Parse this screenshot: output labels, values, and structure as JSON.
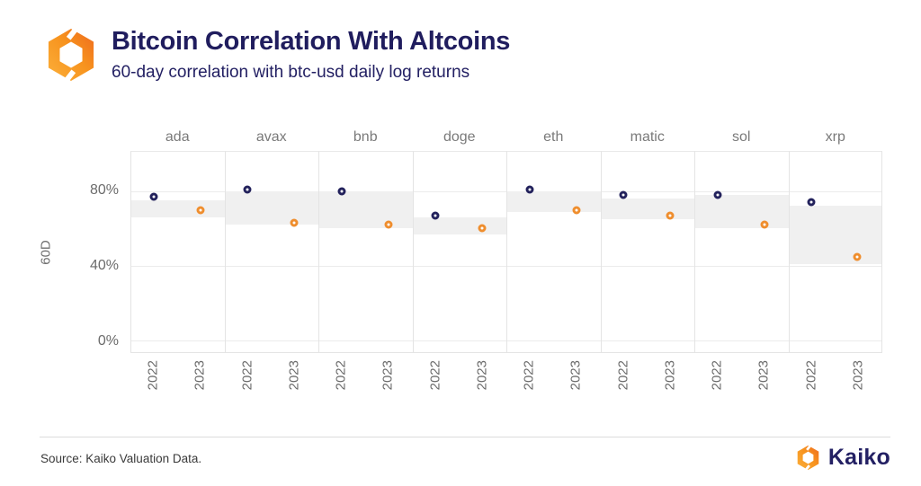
{
  "header": {
    "title": "Bitcoin Correlation With Altcoins",
    "subtitle": "60-day correlation with btc-usd daily log returns",
    "logo_icon": "kaiko-hexagon-mark"
  },
  "chart_data": {
    "type": "scatter",
    "title": "Bitcoin Correlation With Altcoins",
    "subtitle": "60-day correlation with btc-usd daily log returns",
    "facets": [
      "ada",
      "avax",
      "bnb",
      "doge",
      "eth",
      "matic",
      "sol",
      "xrp"
    ],
    "x_categories": [
      "2022",
      "2023"
    ],
    "series": [
      {
        "name": "2022",
        "color": "#23225C",
        "values": [
          77,
          81,
          80,
          67,
          81,
          78,
          78,
          74
        ]
      },
      {
        "name": "2023",
        "color": "#EF8E2E",
        "values": [
          70,
          63,
          62,
          60,
          70,
          67,
          62,
          45
        ]
      }
    ],
    "bands": [
      [
        66,
        75
      ],
      [
        62,
        80
      ],
      [
        60,
        80
      ],
      [
        57,
        66
      ],
      [
        69,
        80
      ],
      [
        65,
        76
      ],
      [
        60,
        78
      ],
      [
        41,
        72
      ]
    ],
    "band_color": "#F0F0F0",
    "ylabel": "60D",
    "ytick_labels": [
      "0%",
      "40%",
      "80%"
    ],
    "ytick_values": [
      0,
      40,
      80
    ],
    "ylim": [
      -6,
      101
    ],
    "point_x_percent": [
      24,
      74
    ],
    "grid": true,
    "legend_position": "none"
  },
  "footer": {
    "source": "Source: Kaiko Valuation Data.",
    "brand": "Kaiko",
    "logo_icon": "kaiko-hexagon-mark"
  },
  "colors": {
    "title_navy": "#201D5E",
    "point_navy": "#23225C",
    "point_orange": "#EF8E2E",
    "logo_orange_light": "#FBB03B",
    "logo_orange_dark": "#EE7A23"
  }
}
